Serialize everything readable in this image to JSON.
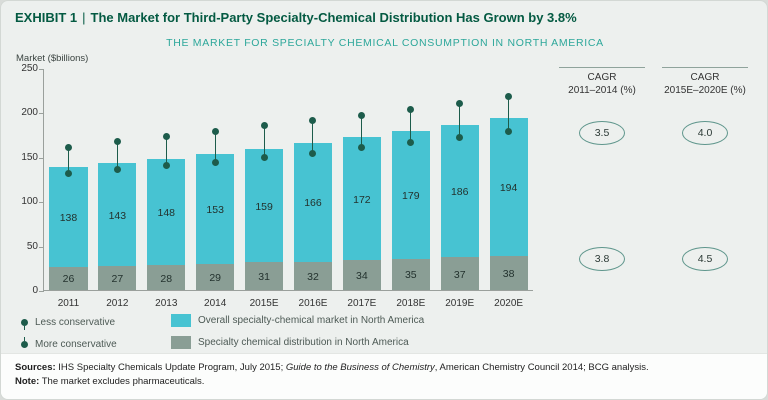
{
  "header": {
    "exhibit_label": "EXHIBIT 1",
    "separator": "|",
    "title": "The Market for Third-Party Specialty-Chemical Distribution Has Grown by 3.8%"
  },
  "subtitle": "THE MARKET FOR SPECIALTY CHEMICAL CONSUMPTION IN NORTH AMERICA",
  "chart_data": {
    "type": "bar",
    "title": "THE MARKET FOR SPECIALTY CHEMICAL CONSUMPTION IN NORTH AMERICA",
    "xlabel": "",
    "ylabel": "Market ($billions)",
    "ylim": [
      0,
      250
    ],
    "yticks": [
      0,
      50,
      100,
      150,
      200,
      250
    ],
    "grid": false,
    "legend_position": "bottom",
    "categories": [
      "2011",
      "2012",
      "2013",
      "2014",
      "2015E",
      "2016E",
      "2017E",
      "2018E",
      "2019E",
      "2020E"
    ],
    "series": [
      {
        "name": "Overall specialty-chemical market in North America",
        "color": "#47c3d2",
        "values": [
          138,
          143,
          148,
          153,
          159,
          166,
          172,
          179,
          186,
          194
        ]
      },
      {
        "name": "Specialty chemical distribution in North America",
        "color": "#8a9e95",
        "values": [
          26,
          27,
          28,
          29,
          31,
          32,
          34,
          35,
          37,
          38
        ]
      },
      {
        "name": "Less conservative (upper estimate)",
        "color": "#1d5c4b",
        "values": [
          160,
          167,
          173,
          178,
          185,
          191,
          197,
          203,
          210,
          218
        ]
      },
      {
        "name": "More conservative (lower estimate)",
        "color": "#1d5c4b",
        "values": [
          131,
          136,
          140,
          144,
          149,
          154,
          160,
          166,
          172,
          179
        ]
      }
    ]
  },
  "legend": {
    "less": "Less conservative",
    "more": "More conservative",
    "overall": "Overall specialty-chemical market in North America",
    "distribution": "Specialty chemical distribution in North America"
  },
  "cagr": {
    "columns": [
      {
        "title": "CAGR",
        "range": "2011–2014 (%)",
        "market_value": "3.5",
        "distribution_value": "3.8"
      },
      {
        "title": "CAGR",
        "range": "2015E–2020E (%)",
        "market_value": "4.0",
        "distribution_value": "4.5"
      }
    ]
  },
  "footer": {
    "sources_label": "Sources:",
    "sources_part1": " IHS Specialty Chemicals Update Program, July 2015; ",
    "sources_italic": "Guide to the Business of Chemistry",
    "sources_part2": ", American Chemistry Council 2014; BCG analysis.",
    "note_label": "Note:",
    "note_text": " The market excludes pharmaceuticals."
  }
}
